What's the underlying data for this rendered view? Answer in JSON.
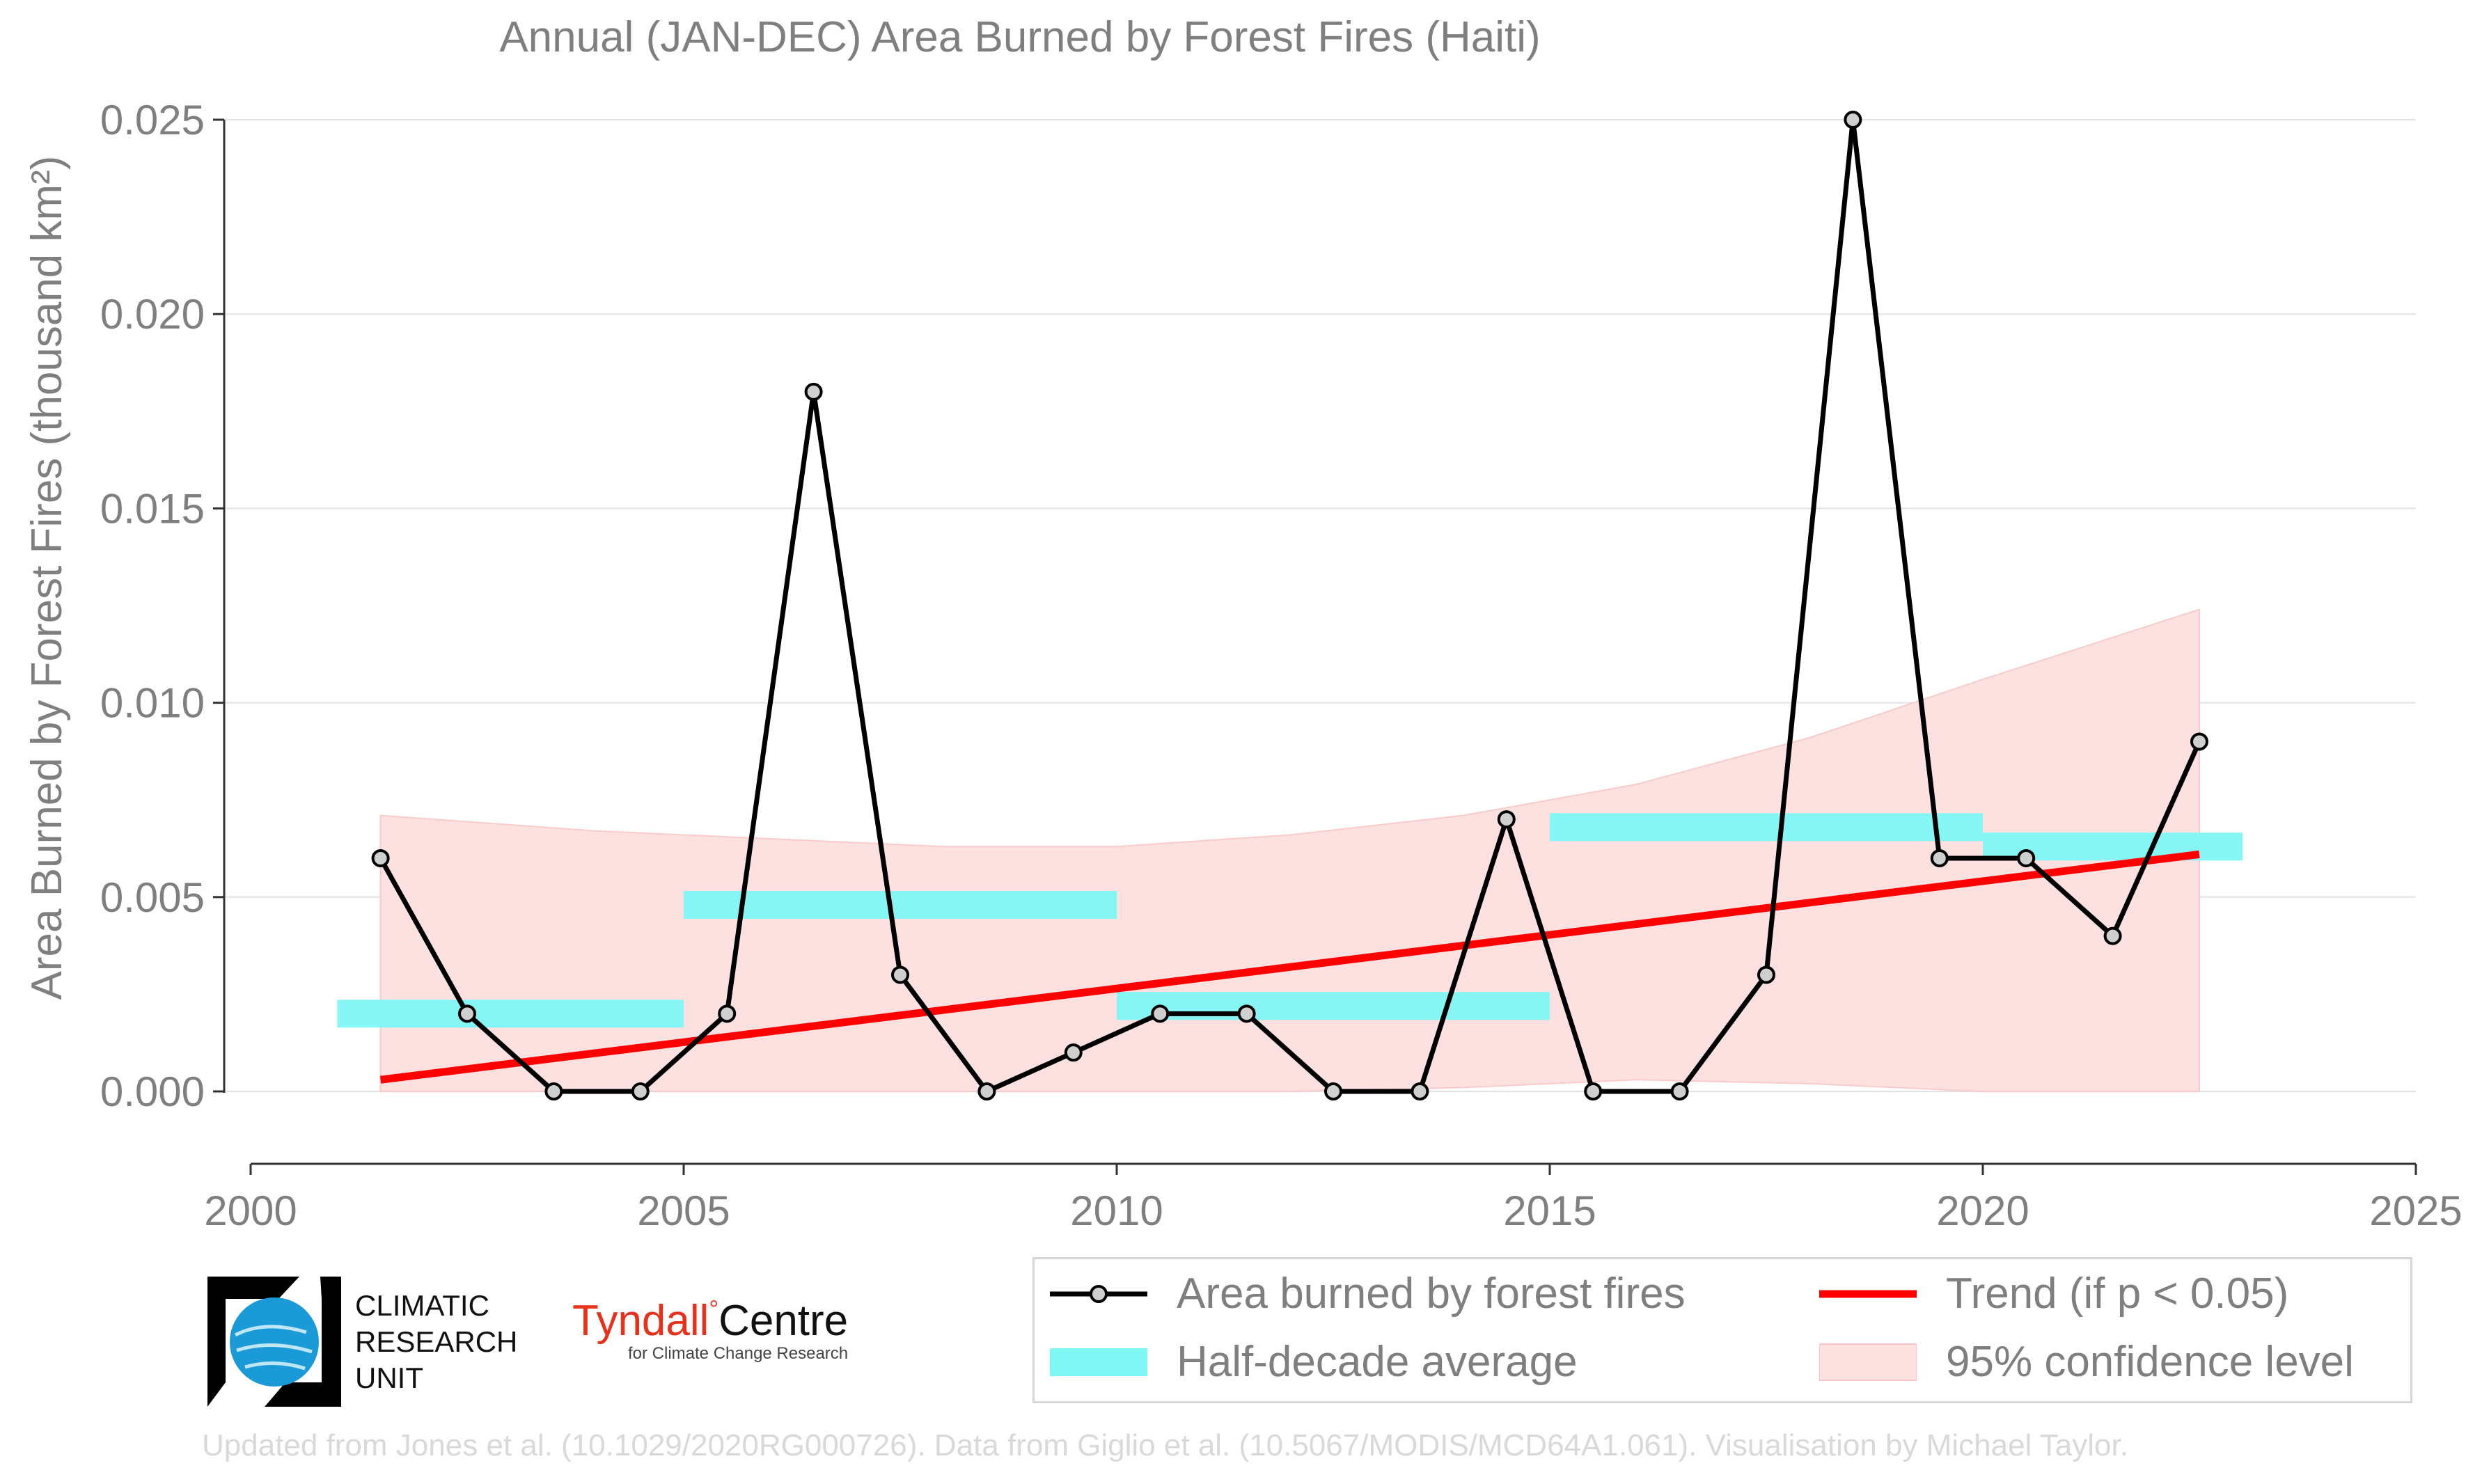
{
  "chart_data": {
    "type": "line",
    "title": "Annual (JAN-DEC) Area Burned by Forest Fires (Haiti)",
    "ylabel": "Area Burned by Forest Fires (thousand km²)",
    "xlabel": "",
    "xlim": [
      2000,
      2025
    ],
    "ylim": [
      -0.0019,
      0.0255
    ],
    "x_ticks": [
      2000,
      2005,
      2010,
      2015,
      2020,
      2025
    ],
    "y_ticks": [
      0.0,
      0.005,
      0.01,
      0.015,
      0.02,
      0.025
    ],
    "y_tick_labels": [
      "0.000",
      "0.005",
      "0.010",
      "0.015",
      "0.020",
      "0.025"
    ],
    "grid": "horizontal",
    "series": [
      {
        "name": "Area burned by forest fires",
        "color": "#000000",
        "x": [
          2001.5,
          2002.5,
          2003.5,
          2004.5,
          2005.5,
          2006.5,
          2007.5,
          2008.5,
          2009.5,
          2010.5,
          2011.5,
          2012.5,
          2013.5,
          2014.5,
          2015.5,
          2016.5,
          2017.5,
          2018.5,
          2019.5,
          2020.5,
          2021.5,
          2022.5
        ],
        "values": [
          0.006,
          0.002,
          0.0,
          0.0,
          0.002,
          0.018,
          0.003,
          0.0,
          0.001,
          0.002,
          0.002,
          0.0,
          0.0,
          0.007,
          0.0,
          0.0,
          0.003,
          0.025,
          0.006,
          0.006,
          0.004,
          0.009
        ]
      },
      {
        "name": "Half-decade average",
        "color": "#7ff7f4",
        "segments": [
          {
            "x_start": 2001,
            "x_end": 2005,
            "value": 0.002
          },
          {
            "x_start": 2005,
            "x_end": 2010,
            "value": 0.0048
          },
          {
            "x_start": 2010,
            "x_end": 2015,
            "value": 0.0022
          },
          {
            "x_start": 2015,
            "x_end": 2020,
            "value": 0.0068
          },
          {
            "x_start": 2020,
            "x_end": 2023,
            "value": 0.0063
          }
        ]
      },
      {
        "name": "Trend (if p < 0.05)",
        "color": "#ff0000",
        "x": [
          2001.5,
          2022.5
        ],
        "values": [
          0.0003,
          0.0061
        ]
      },
      {
        "name": "95% confidence level",
        "color": "#fde0e0",
        "x": [
          2001.5,
          2004,
          2006,
          2008,
          2010,
          2012,
          2014,
          2016,
          2018,
          2020,
          2022.5
        ],
        "upper": [
          0.0071,
          0.0067,
          0.0065,
          0.0063,
          0.0063,
          0.0066,
          0.0071,
          0.0079,
          0.0091,
          0.0106,
          0.0124
        ],
        "lower": [
          0.0,
          0.0,
          0.0,
          0.0,
          0.0,
          0.0,
          0.0001,
          0.0003,
          0.0002,
          0.0,
          0.0
        ]
      }
    ],
    "legend_position": "bottom-right"
  },
  "legend": [
    {
      "label": "Area burned by forest fires",
      "kind": "line-marker",
      "color": "#000000"
    },
    {
      "label": "Trend (if p < 0.05)",
      "kind": "line",
      "color": "#ff0000"
    },
    {
      "label": "Half-decade average",
      "kind": "bar",
      "color": "#7ff7f4"
    },
    {
      "label": "95% confidence level",
      "kind": "area",
      "color": "#fde0e0"
    }
  ],
  "logos": {
    "cru_lines": [
      "CLIMATIC",
      "RESEARCH",
      "UNIT"
    ],
    "tyndall_name": "Tyndall",
    "tyndall_centre": "Centre",
    "tyndall_sub": "for Climate Change Research"
  },
  "footer": "Updated from Jones et al. (10.1029/2020RG000726). Data from Giglio et al. (10.5067/MODIS/MCD64A1.061). Visualisation by Michael Taylor."
}
